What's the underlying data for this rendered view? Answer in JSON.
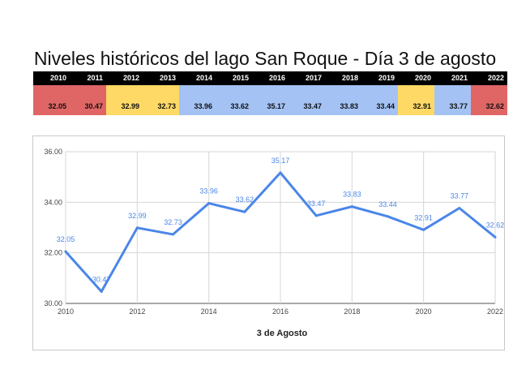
{
  "title": "Niveles históricos del lago San Roque - Día 3 de agosto",
  "table": {
    "years": [
      "2010",
      "2011",
      "2012",
      "2013",
      "2014",
      "2015",
      "2016",
      "2017",
      "2018",
      "2019",
      "2020",
      "2021",
      "2022"
    ],
    "values": [
      "32.05",
      "30.47",
      "32.99",
      "32.73",
      "33.96",
      "33.62",
      "35.17",
      "33.47",
      "33.83",
      "33.44",
      "32.91",
      "33.77",
      "32.62"
    ],
    "colors": [
      "#e06666",
      "#e06666",
      "#ffd966",
      "#ffd966",
      "#a4c2f4",
      "#a4c2f4",
      "#a4c2f4",
      "#a4c2f4",
      "#a4c2f4",
      "#a4c2f4",
      "#ffd966",
      "#a4c2f4",
      "#e06666"
    ]
  },
  "chart_data": {
    "type": "line",
    "x": [
      2010,
      2011,
      2012,
      2013,
      2014,
      2015,
      2016,
      2017,
      2018,
      2019,
      2020,
      2021,
      2022
    ],
    "series": [
      {
        "values": [
          32.05,
          30.47,
          32.99,
          32.73,
          33.96,
          33.62,
          35.17,
          33.47,
          33.83,
          33.44,
          32.91,
          33.77,
          32.62
        ],
        "labels": [
          "32.05",
          "30.47",
          "32.99",
          "32.73",
          "33.96",
          "33.62",
          "35.17",
          "33.47",
          "33.83",
          "33.44",
          "32.91",
          "33.77",
          "32.62"
        ]
      }
    ],
    "xlabel": "3 de Agosto",
    "ylabel": "",
    "ylim": [
      30,
      36
    ],
    "yticks": [
      "30.00",
      "32.00",
      "34.00",
      "36.00"
    ],
    "xticks": [
      "2010",
      "2012",
      "2014",
      "2016",
      "2018",
      "2020",
      "2022"
    ],
    "grid": true,
    "line_color": "#4a86e8"
  }
}
